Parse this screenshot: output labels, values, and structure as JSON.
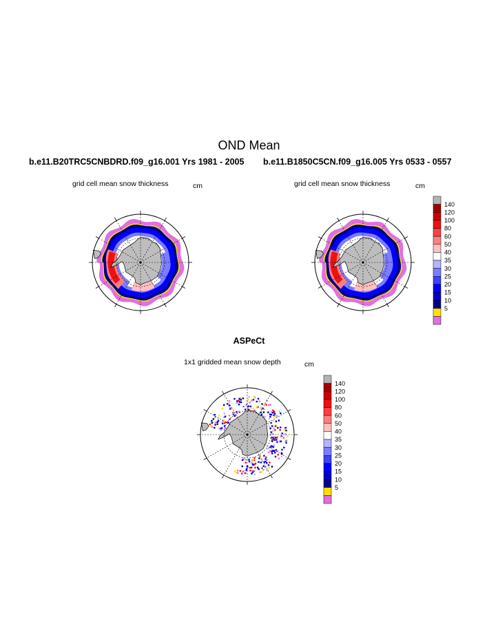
{
  "figure": {
    "title": "OND Mean",
    "left_run": "b.e11.B20TRC5CNBDRD.f09_g16.001  Yrs 1981 - 2005",
    "right_run": "b.e11.B1850C5CN.f09_g16.005  Yrs 0533 - 0557",
    "bottom_title": "ASPeCt"
  },
  "panels": [
    {
      "name": "left",
      "label": "grid cell mean snow thickness",
      "units": "cm"
    },
    {
      "name": "right",
      "label": "grid cell mean snow thickness",
      "units": "cm"
    },
    {
      "name": "bottom",
      "label": "1x1 gridded mean snow depth",
      "units": "cm"
    }
  ],
  "colorbar": {
    "levels": [
      "140",
      "120",
      "100",
      "80",
      "60",
      "50",
      "40",
      "35",
      "30",
      "25",
      "20",
      "15",
      "10",
      "5"
    ],
    "colors": [
      "#b4b4b4",
      "#a00000",
      "#cc0000",
      "#ee1111",
      "#ff4040",
      "#ff7f7f",
      "#ffbfbf",
      "#ffffff",
      "#b4b4ff",
      "#7c7cff",
      "#4040ff",
      "#0000ff",
      "#0000c8",
      "#00008c",
      "#ffe000",
      "#e070e0"
    ]
  },
  "map_colors": {
    "land": "#bdbdbd",
    "ocean": "#ffffff",
    "graticule": "#000000"
  }
}
